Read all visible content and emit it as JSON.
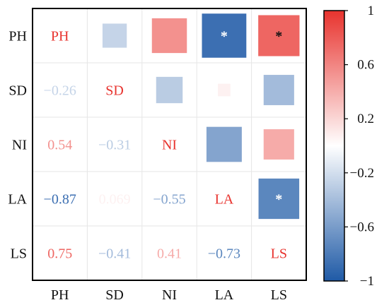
{
  "chart_data": {
    "type": "heatmap",
    "variables": [
      "PH",
      "SD",
      "NI",
      "LA",
      "LS"
    ],
    "matrix": [
      [
        1,
        -0.26,
        0.54,
        -0.87,
        0.75
      ],
      [
        -0.26,
        1,
        -0.31,
        0.069,
        -0.41
      ],
      [
        0.54,
        -0.31,
        1,
        -0.55,
        0.41
      ],
      [
        -0.87,
        0.069,
        -0.55,
        1,
        -0.73
      ],
      [
        0.75,
        -0.41,
        0.41,
        -0.73,
        1
      ]
    ],
    "lower_labels": [
      {
        "row": 1,
        "col": 0,
        "text": "−0.26"
      },
      {
        "row": 2,
        "col": 0,
        "text": "0.54"
      },
      {
        "row": 2,
        "col": 1,
        "text": "−0.31"
      },
      {
        "row": 3,
        "col": 0,
        "text": "−0.87"
      },
      {
        "row": 3,
        "col": 1,
        "text": "0.069"
      },
      {
        "row": 3,
        "col": 2,
        "text": "−0.55"
      },
      {
        "row": 4,
        "col": 0,
        "text": "0.75"
      },
      {
        "row": 4,
        "col": 1,
        "text": "−0.41"
      },
      {
        "row": 4,
        "col": 2,
        "text": "0.41"
      },
      {
        "row": 4,
        "col": 3,
        "text": "−0.73"
      }
    ],
    "significance": [
      {
        "row": 0,
        "col": 3,
        "text": "*"
      },
      {
        "row": 0,
        "col": 4,
        "text": "*"
      },
      {
        "row": 3,
        "col": 4,
        "text": "*"
      }
    ],
    "colorbar": {
      "range": [
        -1,
        1
      ],
      "ticks": [
        {
          "value": 1,
          "label": "1"
        },
        {
          "value": 0.6,
          "label": "0.6"
        },
        {
          "value": 0.2,
          "label": "0.2"
        },
        {
          "value": -0.2,
          "label": "−0.2"
        },
        {
          "value": -0.6,
          "label": "−0.6"
        },
        {
          "value": -1,
          "label": "−1"
        }
      ],
      "colors": {
        "low": "#1f5aa6",
        "mid": "#ffffff",
        "high": "#e8332e"
      }
    },
    "diagonal_color": "#e8332e",
    "grid": true
  }
}
